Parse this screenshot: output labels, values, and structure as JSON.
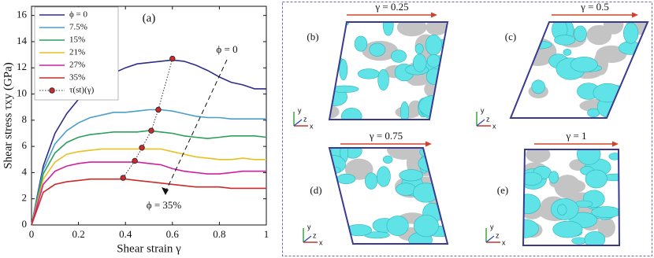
{
  "chart_data": {
    "type": "line",
    "x_label": "Shear strain γ",
    "y_label": "Shear stress τxy (GPa)",
    "annotations": [
      "(a)",
      "ϕ = 0",
      "ϕ = 35%"
    ],
    "x": [
      0,
      0.05,
      0.1,
      0.15,
      0.2,
      0.25,
      0.3,
      0.35,
      0.4,
      0.45,
      0.5,
      0.55,
      0.6,
      0.65,
      0.7,
      0.75,
      0.8,
      0.85,
      0.9,
      0.95,
      1
    ],
    "xlim": [
      0,
      1
    ],
    "xticks": [
      0,
      0.2,
      0.4,
      0.6,
      0.8,
      1
    ],
    "ylim": [
      0,
      16.7
    ],
    "yticks": [
      0,
      2,
      4,
      6,
      8,
      10,
      12,
      14,
      16
    ],
    "legend": "upper left",
    "series": [
      {
        "name": "ϕ = 0",
        "color": "#2e2e8a",
        "values": [
          0,
          4.5,
          7,
          8.5,
          9.6,
          10.5,
          11.1,
          11.6,
          12,
          12.3,
          12.4,
          12.5,
          12.6,
          12.5,
          12.2,
          11.8,
          11.3,
          10.9,
          10.7,
          10.4,
          10.4
        ]
      },
      {
        "name": "7.5%",
        "color": "#4a9fc8",
        "values": [
          0,
          4.2,
          6.2,
          7.2,
          7.8,
          8.2,
          8.4,
          8.6,
          8.6,
          8.7,
          8.8,
          8.8,
          8.7,
          8.5,
          8.3,
          8.2,
          8.2,
          8.1,
          8.1,
          8.1,
          8.1
        ]
      },
      {
        "name": "15%",
        "color": "#2ca05a",
        "values": [
          0,
          3.9,
          5.5,
          6.3,
          6.7,
          6.9,
          7,
          7.1,
          7.1,
          7.1,
          7.2,
          7.1,
          7,
          6.8,
          6.7,
          6.6,
          6.7,
          6.8,
          6.8,
          6.8,
          6.7
        ]
      },
      {
        "name": "21%",
        "color": "#e8c020",
        "values": [
          0,
          3.5,
          4.8,
          5.4,
          5.6,
          5.7,
          5.8,
          5.8,
          5.8,
          5.8,
          5.8,
          5.8,
          5.6,
          5.4,
          5.2,
          5.1,
          5,
          5,
          5.1,
          5,
          5
        ]
      },
      {
        "name": "27%",
        "color": "#d020a0",
        "values": [
          0,
          3.1,
          4.1,
          4.5,
          4.7,
          4.8,
          4.8,
          4.8,
          4.8,
          4.8,
          4.7,
          4.6,
          4.3,
          4.1,
          4,
          3.9,
          3.9,
          4,
          4.1,
          4.1,
          4.1
        ]
      },
      {
        "name": "35%",
        "color": "#cc2a2a",
        "values": [
          0,
          2.5,
          3.1,
          3.3,
          3.4,
          3.5,
          3.5,
          3.5,
          3.5,
          3.4,
          3.3,
          3.2,
          3.1,
          3,
          2.9,
          2.9,
          2.9,
          2.8,
          2.8,
          2.8,
          2.8
        ]
      },
      {
        "name": "τ(st)(γ)",
        "color": "#cc2a2a",
        "linestyle": "dotted",
        "marker": true,
        "x": [
          0.39,
          0.44,
          0.47,
          0.51,
          0.54,
          0.6
        ],
        "values": [
          3.6,
          4.9,
          5.9,
          7.2,
          8.8,
          12.7
        ]
      }
    ]
  },
  "panels": [
    {
      "label": "(b)",
      "strain": "γ = 0.25"
    },
    {
      "label": "(c)",
      "strain": "γ = 0.5"
    },
    {
      "label": "(d)",
      "strain": "γ = 0.75"
    },
    {
      "label": "(e)",
      "strain": "γ = 1"
    }
  ],
  "triad_labels": {
    "x": "x",
    "y": "y",
    "z": "z"
  }
}
